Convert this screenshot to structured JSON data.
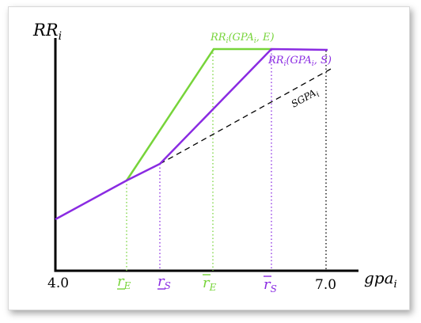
{
  "axes": {
    "y_label": "RR",
    "y_sub": "i",
    "x_label": "gpa",
    "x_sub": "i",
    "x_min_label": "4.0",
    "x_max_label": "7.0"
  },
  "curves": {
    "elite": {
      "label_main": "RR",
      "label_sub": "i",
      "label_args": "(GPA",
      "label_args_sub": "i",
      "label_tail": ", E)",
      "color": "#77d43a"
    },
    "standard": {
      "label_main": "RR",
      "label_sub": "i",
      "label_args": "(GPA",
      "label_args_sub": "i",
      "label_tail": ", S)",
      "color": "#8a2be2"
    },
    "sgpa": {
      "label_main": "SGPA",
      "label_sub": "i",
      "color": "#000000"
    }
  },
  "ticks": [
    {
      "name": "r-lower-E",
      "base": "r",
      "sub": "E",
      "mark": "under",
      "color": "#77d43a"
    },
    {
      "name": "r-lower-S",
      "base": "r",
      "sub": "S",
      "mark": "under",
      "color": "#8a2be2"
    },
    {
      "name": "r-upper-E",
      "base": "r",
      "sub": "E",
      "mark": "over",
      "color": "#77d43a"
    },
    {
      "name": "r-upper-S",
      "base": "r",
      "sub": "S",
      "mark": "over",
      "color": "#8a2be2"
    }
  ]
}
